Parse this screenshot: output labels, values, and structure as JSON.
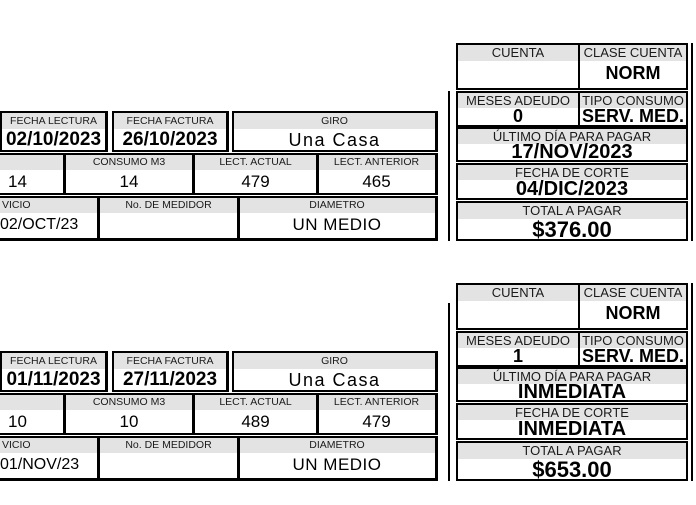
{
  "colors": {
    "header_bg": "#e3e3e3",
    "border": "#000000",
    "page_bg": "#ffffff"
  },
  "bills": [
    {
      "table": {
        "fecha_lectura": {
          "header": "FECHA LECTURA",
          "value": "02/10/2023"
        },
        "fecha_factura": {
          "header": "FECHA FACTURA",
          "value": "26/10/2023"
        },
        "giro": {
          "header": "GIRO",
          "value": "Una Casa"
        },
        "col_cut": {
          "header": "",
          "value": "14"
        },
        "consumo": {
          "header": "CONSUMO M3",
          "value": "14"
        },
        "lect_actual": {
          "header": "LECT. ACTUAL",
          "value": "479"
        },
        "lect_anterior": {
          "header": "LECT. ANTERIOR",
          "value": "465"
        },
        "servicio": {
          "header": "VICIO",
          "value": "02/OCT/23"
        },
        "medidor": {
          "header": "No. DE MEDIDOR",
          "value": ""
        },
        "diametro": {
          "header": "DIAMETRO",
          "value": "UN MEDIO"
        }
      },
      "panel": {
        "cuenta": {
          "header": "CUENTA",
          "value": ""
        },
        "clase": {
          "header": "CLASE CUENTA",
          "value": "NORM"
        },
        "meses": {
          "header": "MESES ADEUDO",
          "value": "0"
        },
        "tipo": {
          "header": "TIPO CONSUMO",
          "value": "SERV. MED."
        },
        "ultimo": {
          "header": "ÚLTIMO DÍA PARA PAGAR",
          "value": "17/NOV/2023"
        },
        "corte": {
          "header": "FECHA DE CORTE",
          "value": "04/DIC/2023"
        },
        "total": {
          "header": "TOTAL A PAGAR",
          "value": "$376.00"
        }
      }
    },
    {
      "table": {
        "fecha_lectura": {
          "header": "FECHA LECTURA",
          "value": "01/11/2023"
        },
        "fecha_factura": {
          "header": "FECHA FACTURA",
          "value": "27/11/2023"
        },
        "giro": {
          "header": "GIRO",
          "value": "Una Casa"
        },
        "col_cut": {
          "header": "",
          "value": "10"
        },
        "consumo": {
          "header": "CONSUMO M3",
          "value": "10"
        },
        "lect_actual": {
          "header": "LECT. ACTUAL",
          "value": "489"
        },
        "lect_anterior": {
          "header": "LECT. ANTERIOR",
          "value": "479"
        },
        "servicio": {
          "header": "VICIO",
          "value": "01/NOV/23"
        },
        "medidor": {
          "header": "No. DE MEDIDOR",
          "value": ""
        },
        "diametro": {
          "header": "DIAMETRO",
          "value": "UN MEDIO"
        }
      },
      "panel": {
        "cuenta": {
          "header": "CUENTA",
          "value": ""
        },
        "clase": {
          "header": "CLASE CUENTA",
          "value": "NORM"
        },
        "meses": {
          "header": "MESES ADEUDO",
          "value": "1"
        },
        "tipo": {
          "header": "TIPO CONSUMO",
          "value": "SERV. MED."
        },
        "ultimo": {
          "header": "ÚLTIMO DÍA PARA PAGAR",
          "value": "INMEDIATA"
        },
        "corte": {
          "header": "FECHA DE CORTE",
          "value": "INMEDIATA"
        },
        "total": {
          "header": "TOTAL A PAGAR",
          "value": "$653.00"
        }
      }
    }
  ]
}
